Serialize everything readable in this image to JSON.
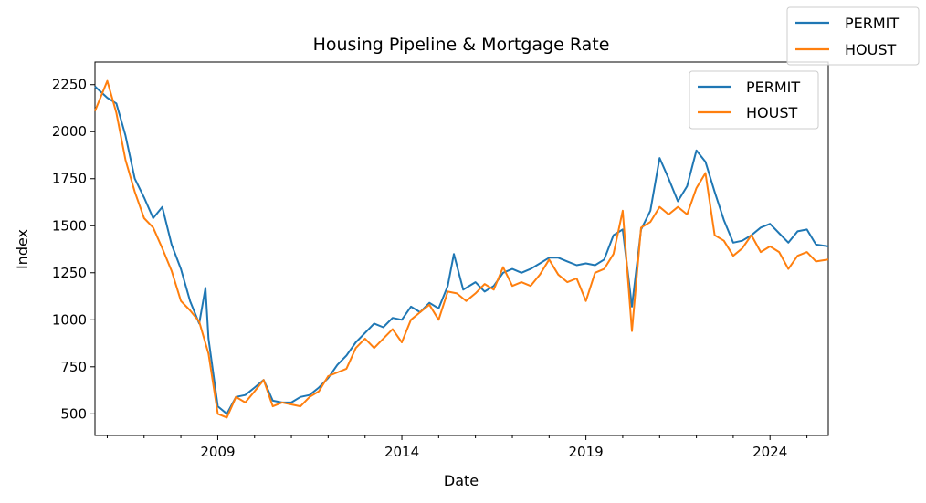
{
  "chart_data": {
    "type": "line",
    "title": "Housing Pipeline & Mortgage Rate",
    "xlabel": "Date",
    "ylabel": "Index",
    "xlim": [
      "2005-09-01",
      "2025-08-01"
    ],
    "ylim": [
      385,
      2370
    ],
    "x_ticks": [
      "2009",
      "2014",
      "2019",
      "2024"
    ],
    "y_ticks": [
      500,
      750,
      1000,
      1250,
      1500,
      1750,
      2000,
      2250
    ],
    "grid": false,
    "legend_placement": "upper right (inside axes) and upper right of figure",
    "legend": [
      "PERMIT",
      "HOUST"
    ],
    "series": [
      {
        "name": "PERMIT",
        "color": "#1f77b4",
        "points": [
          [
            "2005-09-01",
            2240
          ],
          [
            "2006-01-01",
            2180
          ],
          [
            "2006-04-01",
            2150
          ],
          [
            "2006-07-01",
            1980
          ],
          [
            "2006-10-01",
            1750
          ],
          [
            "2007-01-01",
            1650
          ],
          [
            "2007-04-01",
            1540
          ],
          [
            "2007-07-01",
            1600
          ],
          [
            "2007-10-01",
            1400
          ],
          [
            "2008-01-01",
            1270
          ],
          [
            "2008-04-01",
            1100
          ],
          [
            "2008-07-01",
            980
          ],
          [
            "2008-09-01",
            1170
          ],
          [
            "2008-10-01",
            900
          ],
          [
            "2009-01-01",
            540
          ],
          [
            "2009-04-01",
            500
          ],
          [
            "2009-07-01",
            590
          ],
          [
            "2009-10-01",
            600
          ],
          [
            "2010-01-01",
            640
          ],
          [
            "2010-04-01",
            680
          ],
          [
            "2010-07-01",
            570
          ],
          [
            "2010-10-01",
            560
          ],
          [
            "2011-01-01",
            560
          ],
          [
            "2011-04-01",
            590
          ],
          [
            "2011-07-01",
            600
          ],
          [
            "2011-10-01",
            640
          ],
          [
            "2012-01-01",
            690
          ],
          [
            "2012-04-01",
            760
          ],
          [
            "2012-07-01",
            810
          ],
          [
            "2012-10-01",
            880
          ],
          [
            "2013-01-01",
            930
          ],
          [
            "2013-04-01",
            980
          ],
          [
            "2013-07-01",
            960
          ],
          [
            "2013-10-01",
            1010
          ],
          [
            "2014-01-01",
            1000
          ],
          [
            "2014-04-01",
            1070
          ],
          [
            "2014-07-01",
            1040
          ],
          [
            "2014-10-01",
            1090
          ],
          [
            "2015-01-01",
            1060
          ],
          [
            "2015-04-01",
            1180
          ],
          [
            "2015-06-01",
            1350
          ],
          [
            "2015-09-01",
            1160
          ],
          [
            "2016-01-01",
            1200
          ],
          [
            "2016-04-01",
            1150
          ],
          [
            "2016-07-01",
            1180
          ],
          [
            "2016-10-01",
            1250
          ],
          [
            "2017-01-01",
            1270
          ],
          [
            "2017-04-01",
            1250
          ],
          [
            "2017-07-01",
            1270
          ],
          [
            "2017-10-01",
            1300
          ],
          [
            "2018-01-01",
            1330
          ],
          [
            "2018-04-01",
            1330
          ],
          [
            "2018-07-01",
            1310
          ],
          [
            "2018-10-01",
            1290
          ],
          [
            "2019-01-01",
            1300
          ],
          [
            "2019-04-01",
            1290
          ],
          [
            "2019-07-01",
            1320
          ],
          [
            "2019-10-01",
            1450
          ],
          [
            "2020-01-01",
            1480
          ],
          [
            "2020-04-01",
            1070
          ],
          [
            "2020-07-01",
            1480
          ],
          [
            "2020-10-01",
            1580
          ],
          [
            "2021-01-01",
            1860
          ],
          [
            "2021-04-01",
            1750
          ],
          [
            "2021-07-01",
            1630
          ],
          [
            "2021-10-01",
            1710
          ],
          [
            "2022-01-01",
            1900
          ],
          [
            "2022-04-01",
            1840
          ],
          [
            "2022-07-01",
            1680
          ],
          [
            "2022-10-01",
            1530
          ],
          [
            "2023-01-01",
            1410
          ],
          [
            "2023-04-01",
            1420
          ],
          [
            "2023-07-01",
            1450
          ],
          [
            "2023-10-01",
            1490
          ],
          [
            "2024-01-01",
            1510
          ],
          [
            "2024-04-01",
            1460
          ],
          [
            "2024-07-01",
            1410
          ],
          [
            "2024-10-01",
            1470
          ],
          [
            "2025-01-01",
            1480
          ],
          [
            "2025-04-01",
            1400
          ],
          [
            "2025-08-01",
            1390
          ]
        ]
      },
      {
        "name": "HOUST",
        "color": "#ff7f0e",
        "points": [
          [
            "2005-09-01",
            2110
          ],
          [
            "2006-01-01",
            2270
          ],
          [
            "2006-04-01",
            2100
          ],
          [
            "2006-07-01",
            1850
          ],
          [
            "2006-10-01",
            1680
          ],
          [
            "2007-01-01",
            1540
          ],
          [
            "2007-04-01",
            1490
          ],
          [
            "2007-07-01",
            1380
          ],
          [
            "2007-10-01",
            1260
          ],
          [
            "2008-01-01",
            1100
          ],
          [
            "2008-04-01",
            1050
          ],
          [
            "2008-07-01",
            990
          ],
          [
            "2008-10-01",
            820
          ],
          [
            "2009-01-01",
            500
          ],
          [
            "2009-04-01",
            480
          ],
          [
            "2009-07-01",
            590
          ],
          [
            "2009-10-01",
            560
          ],
          [
            "2010-01-01",
            620
          ],
          [
            "2010-04-01",
            680
          ],
          [
            "2010-07-01",
            540
          ],
          [
            "2010-10-01",
            560
          ],
          [
            "2011-01-01",
            550
          ],
          [
            "2011-04-01",
            540
          ],
          [
            "2011-07-01",
            590
          ],
          [
            "2011-10-01",
            620
          ],
          [
            "2012-01-01",
            700
          ],
          [
            "2012-04-01",
            720
          ],
          [
            "2012-07-01",
            740
          ],
          [
            "2012-10-01",
            850
          ],
          [
            "2013-01-01",
            900
          ],
          [
            "2013-04-01",
            850
          ],
          [
            "2013-07-01",
            900
          ],
          [
            "2013-10-01",
            950
          ],
          [
            "2014-01-01",
            880
          ],
          [
            "2014-04-01",
            1000
          ],
          [
            "2014-07-01",
            1040
          ],
          [
            "2014-10-01",
            1080
          ],
          [
            "2015-01-01",
            1000
          ],
          [
            "2015-04-01",
            1150
          ],
          [
            "2015-07-01",
            1140
          ],
          [
            "2015-10-01",
            1100
          ],
          [
            "2016-01-01",
            1140
          ],
          [
            "2016-04-01",
            1190
          ],
          [
            "2016-07-01",
            1160
          ],
          [
            "2016-10-01",
            1280
          ],
          [
            "2017-01-01",
            1180
          ],
          [
            "2017-04-01",
            1200
          ],
          [
            "2017-07-01",
            1180
          ],
          [
            "2017-10-01",
            1240
          ],
          [
            "2018-01-01",
            1320
          ],
          [
            "2018-04-01",
            1240
          ],
          [
            "2018-07-01",
            1200
          ],
          [
            "2018-10-01",
            1220
          ],
          [
            "2019-01-01",
            1100
          ],
          [
            "2019-04-01",
            1250
          ],
          [
            "2019-07-01",
            1270
          ],
          [
            "2019-10-01",
            1350
          ],
          [
            "2020-01-01",
            1580
          ],
          [
            "2020-04-01",
            940
          ],
          [
            "2020-07-01",
            1490
          ],
          [
            "2020-10-01",
            1520
          ],
          [
            "2021-01-01",
            1600
          ],
          [
            "2021-04-01",
            1560
          ],
          [
            "2021-07-01",
            1600
          ],
          [
            "2021-10-01",
            1560
          ],
          [
            "2022-01-01",
            1700
          ],
          [
            "2022-04-01",
            1780
          ],
          [
            "2022-07-01",
            1450
          ],
          [
            "2022-10-01",
            1420
          ],
          [
            "2023-01-01",
            1340
          ],
          [
            "2023-04-01",
            1380
          ],
          [
            "2023-07-01",
            1450
          ],
          [
            "2023-10-01",
            1360
          ],
          [
            "2024-01-01",
            1390
          ],
          [
            "2024-04-01",
            1360
          ],
          [
            "2024-07-01",
            1270
          ],
          [
            "2024-10-01",
            1340
          ],
          [
            "2025-01-01",
            1360
          ],
          [
            "2025-04-01",
            1310
          ],
          [
            "2025-08-01",
            1320
          ]
        ]
      }
    ]
  }
}
